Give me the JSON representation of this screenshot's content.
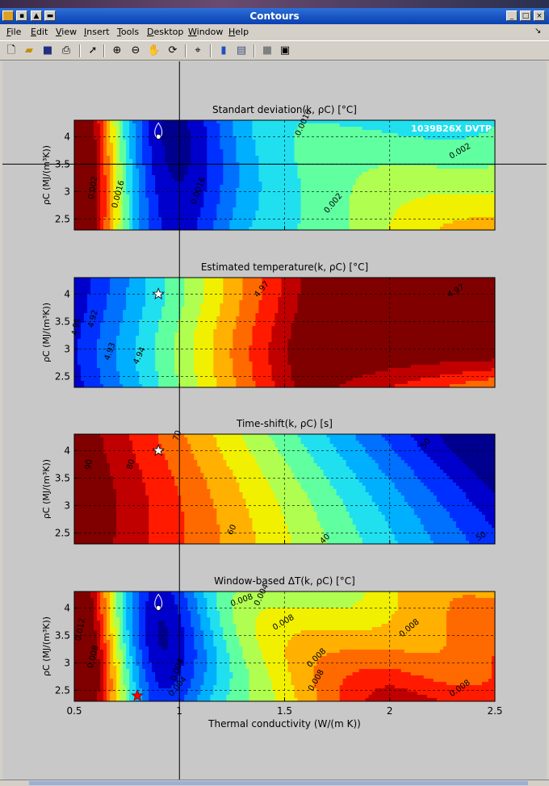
{
  "window": {
    "title": "Contours",
    "menus": [
      "File",
      "Edit",
      "View",
      "Insert",
      "Tools",
      "Desktop",
      "Window",
      "Help"
    ],
    "menu_underline": [
      "F",
      "E",
      "V",
      "I",
      "T",
      "D",
      "W",
      "H"
    ],
    "controls": {
      "minimize": "_",
      "maximize": "□",
      "close": "×"
    },
    "toolbar_icons": [
      "new-figure-icon",
      "open-file-icon",
      "save-icon",
      "print-icon",
      "pointer-icon",
      "zoom-in-icon",
      "zoom-out-icon",
      "pan-icon",
      "rotate-3d-icon",
      "data-cursor-icon",
      "colorbar-icon",
      "legend-icon",
      "hide-plot-tools-icon",
      "show-plot-tools-icon"
    ]
  },
  "figure": {
    "xlabel": "Thermal conductivity (W/(m K))",
    "ylabel": "ρC (MJ/(m³K))",
    "xticks": [
      "0.5",
      "1",
      "1.5",
      "2",
      "2.5"
    ],
    "yticks": [
      "2.5",
      "3",
      "3.5",
      "4"
    ],
    "corner_tag": "1039B26X  DVTP",
    "colors": {
      "dark_navy": "#00008f",
      "dark_red": "#800000",
      "figure_bg": "#c8c8c8"
    }
  },
  "chart_data": [
    {
      "type": "contour",
      "title": "Standart deviation(k, ρC) [°C]",
      "xlim": [
        0.5,
        2.5
      ],
      "ylim": [
        2.3,
        4.3
      ],
      "contour_labels": [
        "0.002",
        "0.0016",
        "0.0016",
        "0.0016",
        "0.002",
        "0.002"
      ],
      "marker": {
        "shape": "circle",
        "x": 0.9,
        "y": 4.0
      }
    },
    {
      "type": "contour",
      "title": "Estimated temperature(k, ρC) [°C]",
      "xlim": [
        0.5,
        2.5
      ],
      "ylim": [
        2.3,
        4.3
      ],
      "contour_labels": [
        "4.91",
        "4.92",
        "4.93",
        "4.94",
        "4.97",
        "4.97"
      ],
      "marker": {
        "shape": "star",
        "x": 0.9,
        "y": 4.0
      }
    },
    {
      "type": "contour",
      "title": "Time-shift(k, ρC) [s]",
      "xlim": [
        0.5,
        2.5
      ],
      "ylim": [
        2.3,
        4.3
      ],
      "contour_labels": [
        "90",
        "80",
        "70",
        "60",
        "50",
        "50",
        "40"
      ],
      "marker": {
        "shape": "star",
        "x": 0.9,
        "y": 4.0
      }
    },
    {
      "type": "contour",
      "title": "Window-based ΔT(k, ρC) [°C]",
      "xlim": [
        0.5,
        2.5
      ],
      "ylim": [
        2.3,
        4.3
      ],
      "contour_labels": [
        "0.012",
        "0.008",
        "0.004",
        "0.004",
        "0.004",
        "0.008",
        "0.008",
        "0.008",
        "0.008",
        "0.008",
        "0.008"
      ],
      "marker": {
        "shape": "circle",
        "x": 0.9,
        "y": 4.0
      },
      "marker2": {
        "shape": "star",
        "color": "#ff0000",
        "x": 0.8,
        "y": 2.4
      }
    }
  ],
  "crosshair": {
    "x": 1.0,
    "y": 3.5
  }
}
